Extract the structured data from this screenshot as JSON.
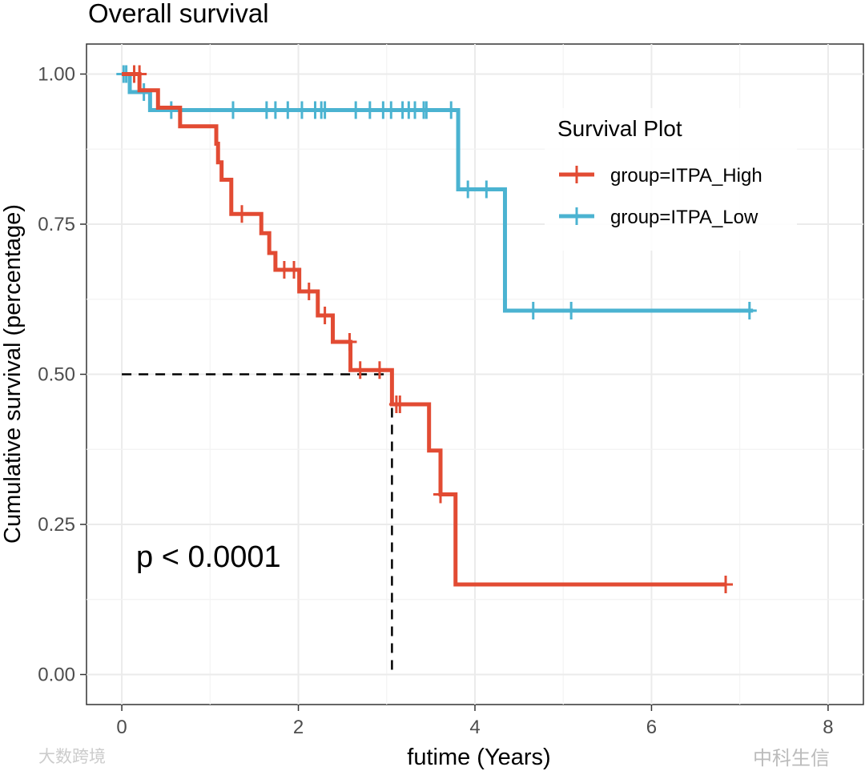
{
  "chart_data": {
    "type": "line",
    "title": "Overall survival",
    "xlabel": "futime (Years)",
    "ylabel": "Cumulative survival (percentage)",
    "xlim": [
      -0.4,
      8.4
    ],
    "ylim": [
      -0.05,
      1.05
    ],
    "x_ticks": [
      0,
      2,
      4,
      6,
      8
    ],
    "x_tick_labels": [
      "0",
      "2",
      "4",
      "6",
      "8"
    ],
    "y_ticks": [
      0,
      0.25,
      0.5,
      0.75,
      1.0
    ],
    "y_tick_labels": [
      "0.00",
      "0.25",
      "0.50",
      "0.75",
      "1.00"
    ],
    "grid": true,
    "legend": {
      "title": "Survival Plot",
      "placement": "top-right"
    },
    "annotation": "p < 0.0001",
    "median_line": {
      "x": 3.06,
      "y": 0.5
    },
    "series": [
      {
        "name": "group=ITPA_High",
        "color": "#E24B33",
        "steps": [
          [
            0,
            1.0
          ],
          [
            0.2,
            0.973
          ],
          [
            0.41,
            0.944
          ],
          [
            0.66,
            0.913
          ],
          [
            1.07,
            0.884
          ],
          [
            1.09,
            0.853
          ],
          [
            1.13,
            0.824
          ],
          [
            1.24,
            0.767
          ],
          [
            1.58,
            0.735
          ],
          [
            1.67,
            0.702
          ],
          [
            1.74,
            0.674
          ],
          [
            2.01,
            0.638
          ],
          [
            2.22,
            0.598
          ],
          [
            2.39,
            0.554
          ],
          [
            2.59,
            0.507
          ],
          [
            3.06,
            0.45
          ],
          [
            3.48,
            0.373
          ],
          [
            3.61,
            0.3
          ],
          [
            3.78,
            0.15
          ],
          [
            6.84,
            0.15
          ]
        ],
        "censored": [
          [
            0.14,
            1.0
          ],
          [
            0.2,
            1.0
          ],
          [
            1.36,
            0.767
          ],
          [
            1.84,
            0.674
          ],
          [
            1.95,
            0.674
          ],
          [
            2.12,
            0.638
          ],
          [
            2.3,
            0.598
          ],
          [
            2.58,
            0.554
          ],
          [
            2.7,
            0.507
          ],
          [
            2.92,
            0.507
          ],
          [
            3.11,
            0.45
          ],
          [
            3.15,
            0.45
          ],
          [
            3.61,
            0.3
          ],
          [
            6.84,
            0.15
          ]
        ]
      },
      {
        "name": "group=ITPA_Low",
        "color": "#4BB3D1",
        "steps": [
          [
            0,
            1.0
          ],
          [
            0.09,
            0.97
          ],
          [
            0.32,
            0.94
          ],
          [
            3.81,
            0.808
          ],
          [
            4.34,
            0.606
          ],
          [
            7.15,
            0.606
          ]
        ],
        "censored": [
          [
            0.02,
            1.0
          ],
          [
            0.05,
            1.0
          ],
          [
            0.25,
            0.97
          ],
          [
            0.56,
            0.94
          ],
          [
            1.26,
            0.94
          ],
          [
            1.64,
            0.94
          ],
          [
            1.74,
            0.94
          ],
          [
            1.88,
            0.94
          ],
          [
            2.04,
            0.94
          ],
          [
            2.19,
            0.94
          ],
          [
            2.26,
            0.94
          ],
          [
            2.3,
            0.94
          ],
          [
            2.65,
            0.94
          ],
          [
            2.81,
            0.94
          ],
          [
            2.96,
            0.94
          ],
          [
            3.05,
            0.94
          ],
          [
            3.18,
            0.94
          ],
          [
            3.25,
            0.94
          ],
          [
            3.32,
            0.94
          ],
          [
            3.42,
            0.94
          ],
          [
            3.45,
            0.94
          ],
          [
            3.73,
            0.94
          ],
          [
            3.92,
            0.808
          ],
          [
            4.13,
            0.808
          ],
          [
            4.66,
            0.606
          ],
          [
            5.09,
            0.606
          ],
          [
            7.11,
            0.606
          ]
        ]
      }
    ]
  },
  "watermarks": {
    "left": "大数跨境",
    "right": "中科生信"
  }
}
